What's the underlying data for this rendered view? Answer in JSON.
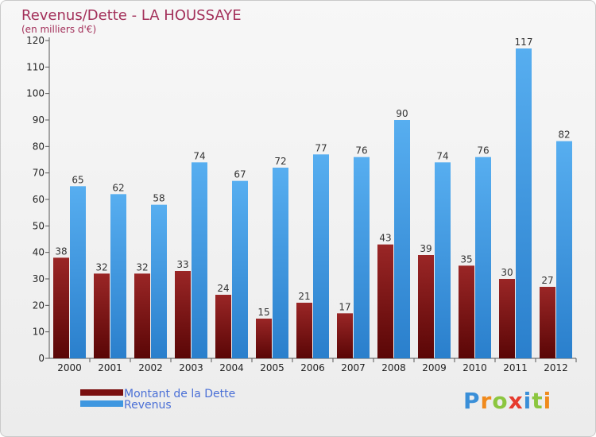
{
  "chart_data": {
    "type": "bar",
    "title": "Revenus/Dette - LA HOUSSAYE",
    "subtitle": "(en milliers d'€)",
    "categories": [
      "2000",
      "2001",
      "2002",
      "2003",
      "2004",
      "2005",
      "2006",
      "2007",
      "2008",
      "2009",
      "2010",
      "2011",
      "2012"
    ],
    "series": [
      {
        "name": "Montant de la Dette",
        "color": "#7a1010",
        "values": [
          38,
          32,
          32,
          33,
          24,
          15,
          21,
          17,
          43,
          39,
          35,
          30,
          27
        ]
      },
      {
        "name": "Revenus",
        "color": "#3f97e0",
        "values": [
          65,
          62,
          58,
          74,
          67,
          72,
          77,
          76,
          90,
          74,
          76,
          117,
          82
        ]
      }
    ],
    "ylim": [
      0,
      120
    ],
    "yticks": [
      0,
      10,
      20,
      30,
      40,
      50,
      60,
      70,
      80,
      90,
      100,
      110,
      120
    ],
    "grid": false,
    "legend_position": "bottom-left"
  },
  "logo": {
    "text": "Proxiti",
    "letter_colors": [
      "#3a8fd8",
      "#f08a1c",
      "#8cc63f",
      "#e63b2e",
      "#3a8fd8",
      "#8cc63f",
      "#f08a1c"
    ]
  }
}
